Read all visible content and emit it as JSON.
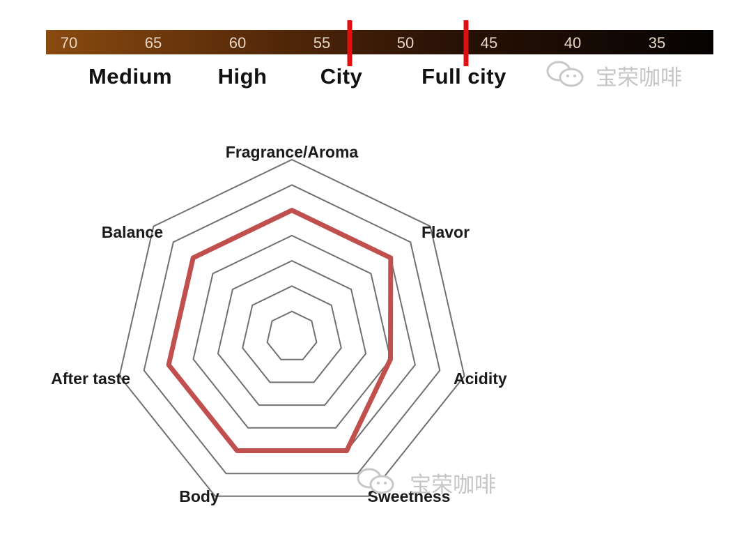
{
  "roast_scale": {
    "tick_labels": [
      "70",
      "65",
      "60",
      "55",
      "50",
      "45",
      "40",
      "35"
    ],
    "roast_levels": [
      "Medium",
      "High",
      "City",
      "Full city"
    ],
    "markers": [
      53,
      46
    ],
    "colors": {
      "light": "#8a4a10",
      "dark": "#050302",
      "marker": "#e01010"
    }
  },
  "watermark": {
    "text": "宝荣咖啡",
    "icon": "wechat-logo-icon"
  },
  "chart_data": {
    "type": "radar",
    "axes": [
      "Fragrance/Aroma",
      "Flavor",
      "Acidity",
      "Sweetness",
      "Body",
      "After taste",
      "Balance"
    ],
    "rings": 7,
    "range": [
      0,
      7
    ],
    "series": [
      {
        "values": [
          5,
          5,
          4,
          5,
          5,
          5,
          5
        ],
        "color": "#c0504d"
      }
    ],
    "grid_color": "#707070"
  }
}
